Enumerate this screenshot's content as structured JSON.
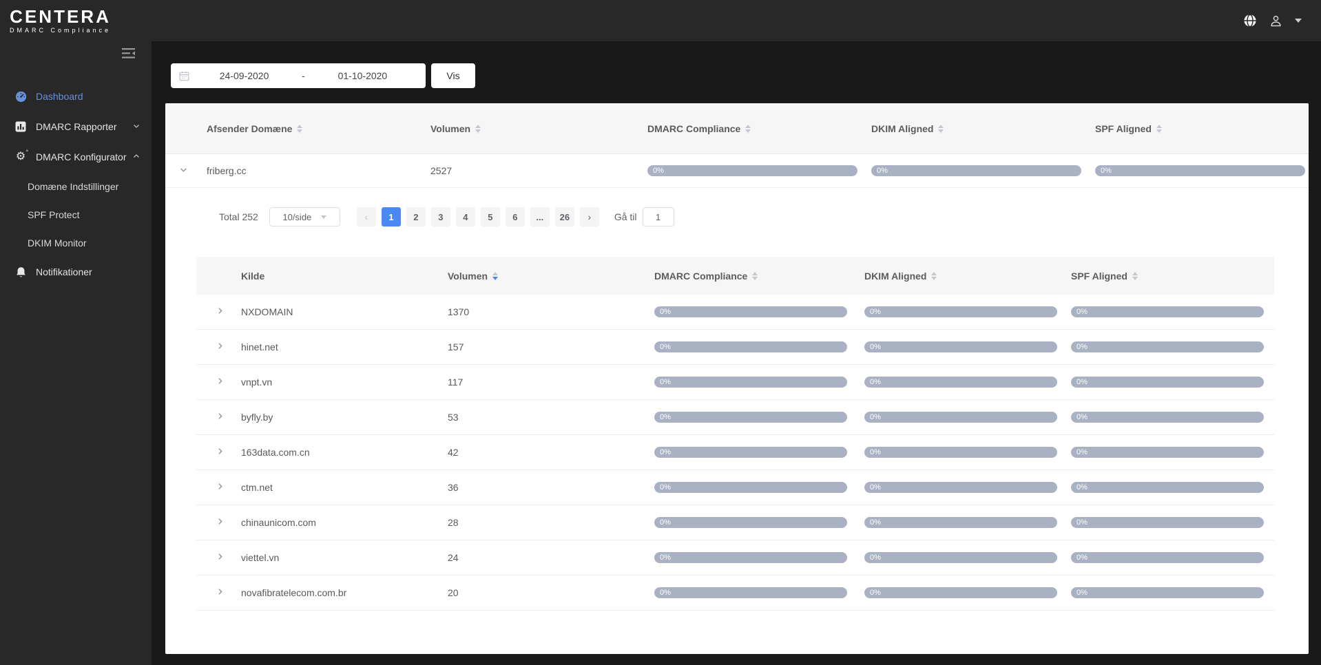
{
  "brand": {
    "name": "CENTERA",
    "subtitle": "DMARC Compliance"
  },
  "sidebar": {
    "items": [
      {
        "label": "Dashboard"
      },
      {
        "label": "DMARC Rapporter"
      },
      {
        "label": "DMARC Konfigurator"
      },
      {
        "label": "Domæne Indstillinger"
      },
      {
        "label": "SPF Protect"
      },
      {
        "label": "DKIM Monitor"
      },
      {
        "label": "Notifikationer"
      }
    ]
  },
  "toolbar": {
    "date_from": "24-09-2020",
    "date_separator": "-",
    "date_to": "01-10-2020",
    "view_button": "Vis"
  },
  "domains_table": {
    "headers": [
      "Afsender Domæne",
      "Volumen",
      "DMARC Compliance",
      "DKIM Aligned",
      "SPF Aligned"
    ],
    "rows": [
      {
        "domain": "friberg.cc",
        "volume": "2527",
        "dmarc": "0%",
        "dkim": "0%",
        "spf": "0%"
      }
    ]
  },
  "pagination": {
    "total_label": "Total 252",
    "page_size": "10/side",
    "pages": [
      "1",
      "2",
      "3",
      "4",
      "5",
      "6",
      "...",
      "26"
    ],
    "active_page": "1",
    "goto_label": "Gå til",
    "goto_value": "1"
  },
  "sources_table": {
    "headers": [
      "Kilde",
      "Volumen",
      "DMARC Compliance",
      "DKIM Aligned",
      "SPF Aligned"
    ],
    "rows": [
      {
        "name": "NXDOMAIN",
        "volume": "1370",
        "dmarc": "0%",
        "dkim": "0%",
        "spf": "0%"
      },
      {
        "name": "hinet.net",
        "volume": "157",
        "dmarc": "0%",
        "dkim": "0%",
        "spf": "0%"
      },
      {
        "name": "vnpt.vn",
        "volume": "117",
        "dmarc": "0%",
        "dkim": "0%",
        "spf": "0%"
      },
      {
        "name": "byfly.by",
        "volume": "53",
        "dmarc": "0%",
        "dkim": "0%",
        "spf": "0%"
      },
      {
        "name": "163data.com.cn",
        "volume": "42",
        "dmarc": "0%",
        "dkim": "0%",
        "spf": "0%"
      },
      {
        "name": "ctm.net",
        "volume": "36",
        "dmarc": "0%",
        "dkim": "0%",
        "spf": "0%"
      },
      {
        "name": "chinaunicom.com",
        "volume": "28",
        "dmarc": "0%",
        "dkim": "0%",
        "spf": "0%"
      },
      {
        "name": "viettel.vn",
        "volume": "24",
        "dmarc": "0%",
        "dkim": "0%",
        "spf": "0%"
      },
      {
        "name": "novafibratelecom.com.br",
        "volume": "20",
        "dmarc": "0%",
        "dkim": "0%",
        "spf": "0%"
      }
    ]
  },
  "colors": {
    "accent_blue": "#4a89f4",
    "link_blue": "#6691da",
    "bar_gray": "#aab1c3",
    "topbar_bg": "#282828",
    "content_bg": "#191919",
    "header_row_bg": "#f6f6f7"
  }
}
